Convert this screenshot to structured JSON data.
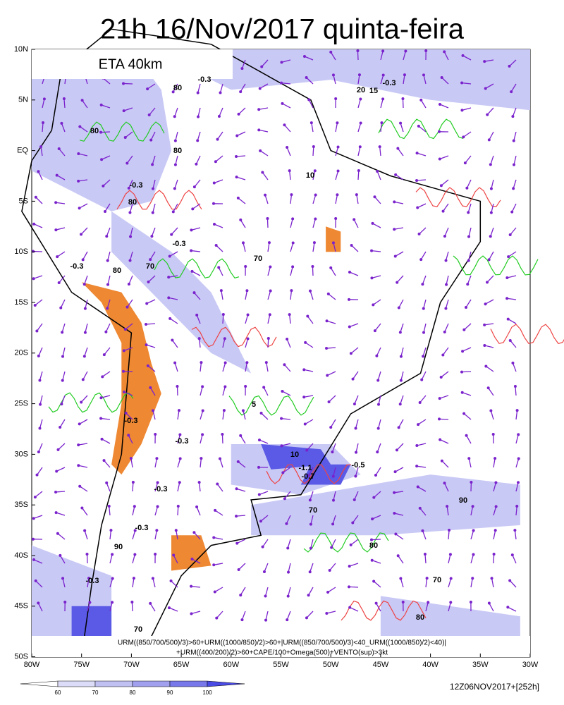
{
  "header": {
    "title": "21h 16/Nov/2017 quinta-feira",
    "model": "ETA 40km"
  },
  "axes": {
    "lat_labels": [
      "10N",
      "5N",
      "EQ",
      "5S",
      "10S",
      "15S",
      "20S",
      "25S",
      "30S",
      "35S",
      "40S",
      "45S",
      "50S"
    ],
    "lon_labels": [
      "80W",
      "75W",
      "70W",
      "65W",
      "60W",
      "55W",
      "50W",
      "45W",
      "40W",
      "35W",
      "30W"
    ]
  },
  "caption": {
    "line1": "URM((850/700/500)/3)>60+URM((1000/850)/2)>60+|URM((850/700/500)/3)<40_URM((1000/850)/2)<40)|",
    "line2": "+URM((400/200)/2)>60+CAPE/100+Omega(500)+VENTO(sup)>3kt"
  },
  "colorbar": {
    "labels": [
      60,
      70,
      80,
      90,
      100
    ]
  },
  "run": "12Z06NOV2017+[252h]",
  "contour_labels": [
    "-0.3",
    "-0.3",
    "80",
    "80",
    "80",
    "-0.3",
    "80",
    "-0.3",
    "-0.3",
    "70",
    "80",
    "70",
    "-0.3",
    "-0.3",
    "-0.3",
    "-0.3",
    "-1.1",
    "-0.7",
    "-0.5",
    "70",
    "90",
    "80",
    "70",
    "-0.3",
    "90",
    "80",
    "70",
    "15",
    "10",
    "20",
    "5",
    "10"
  ]
}
